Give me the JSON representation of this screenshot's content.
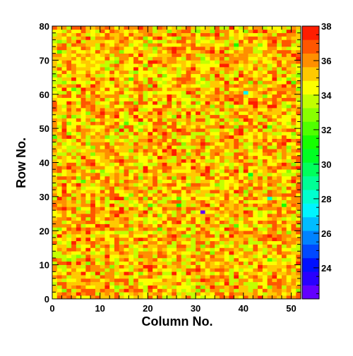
{
  "chart_data": {
    "type": "heatmap",
    "title": "",
    "xlabel": "Column No.",
    "ylabel": "Row No.",
    "x": {
      "range": [
        0,
        52
      ],
      "ticks": [
        0,
        10,
        20,
        30,
        40,
        50
      ]
    },
    "y": {
      "range": [
        0,
        80
      ],
      "ticks": [
        0,
        10,
        20,
        30,
        40,
        50,
        60,
        70,
        80
      ]
    },
    "z": {
      "range": [
        22.2,
        38
      ],
      "ticks": [
        24,
        26,
        28,
        30,
        32,
        34,
        36,
        38
      ],
      "levels": 20
    },
    "grid": false,
    "legend": "colorbar-right",
    "cells_summary": {
      "columns": 52,
      "rows": 80,
      "typical_value_range": [
        33,
        37
      ],
      "notes": "Values are mostly 33-37 (yellow/orange) with scattered red highs and a few green/cyan lows."
    },
    "notable_cells": [
      {
        "col": 31,
        "row": 25,
        "value": 22.5
      },
      {
        "col": 40,
        "row": 60,
        "value": 27.5
      },
      {
        "col": 45,
        "row": 29,
        "value": 28.0
      },
      {
        "col": 48,
        "row": 27,
        "value": 31.0
      },
      {
        "col": 41,
        "row": 36,
        "value": 30.5
      },
      {
        "col": 26,
        "row": 27,
        "value": 31.5
      },
      {
        "col": 38,
        "row": 74,
        "value": 31.5
      },
      {
        "col": 4,
        "row": 61,
        "value": 32.0
      },
      {
        "col": 16,
        "row": 64,
        "value": 32.0
      },
      {
        "col": 6,
        "row": 61,
        "value": 37.5
      },
      {
        "col": 17,
        "row": 55,
        "value": 37.8
      },
      {
        "col": 50,
        "row": 63,
        "value": 32.2
      },
      {
        "col": 45,
        "row": 50,
        "value": 32.0
      },
      {
        "col": 13,
        "row": 3,
        "value": 32.5
      }
    ]
  }
}
